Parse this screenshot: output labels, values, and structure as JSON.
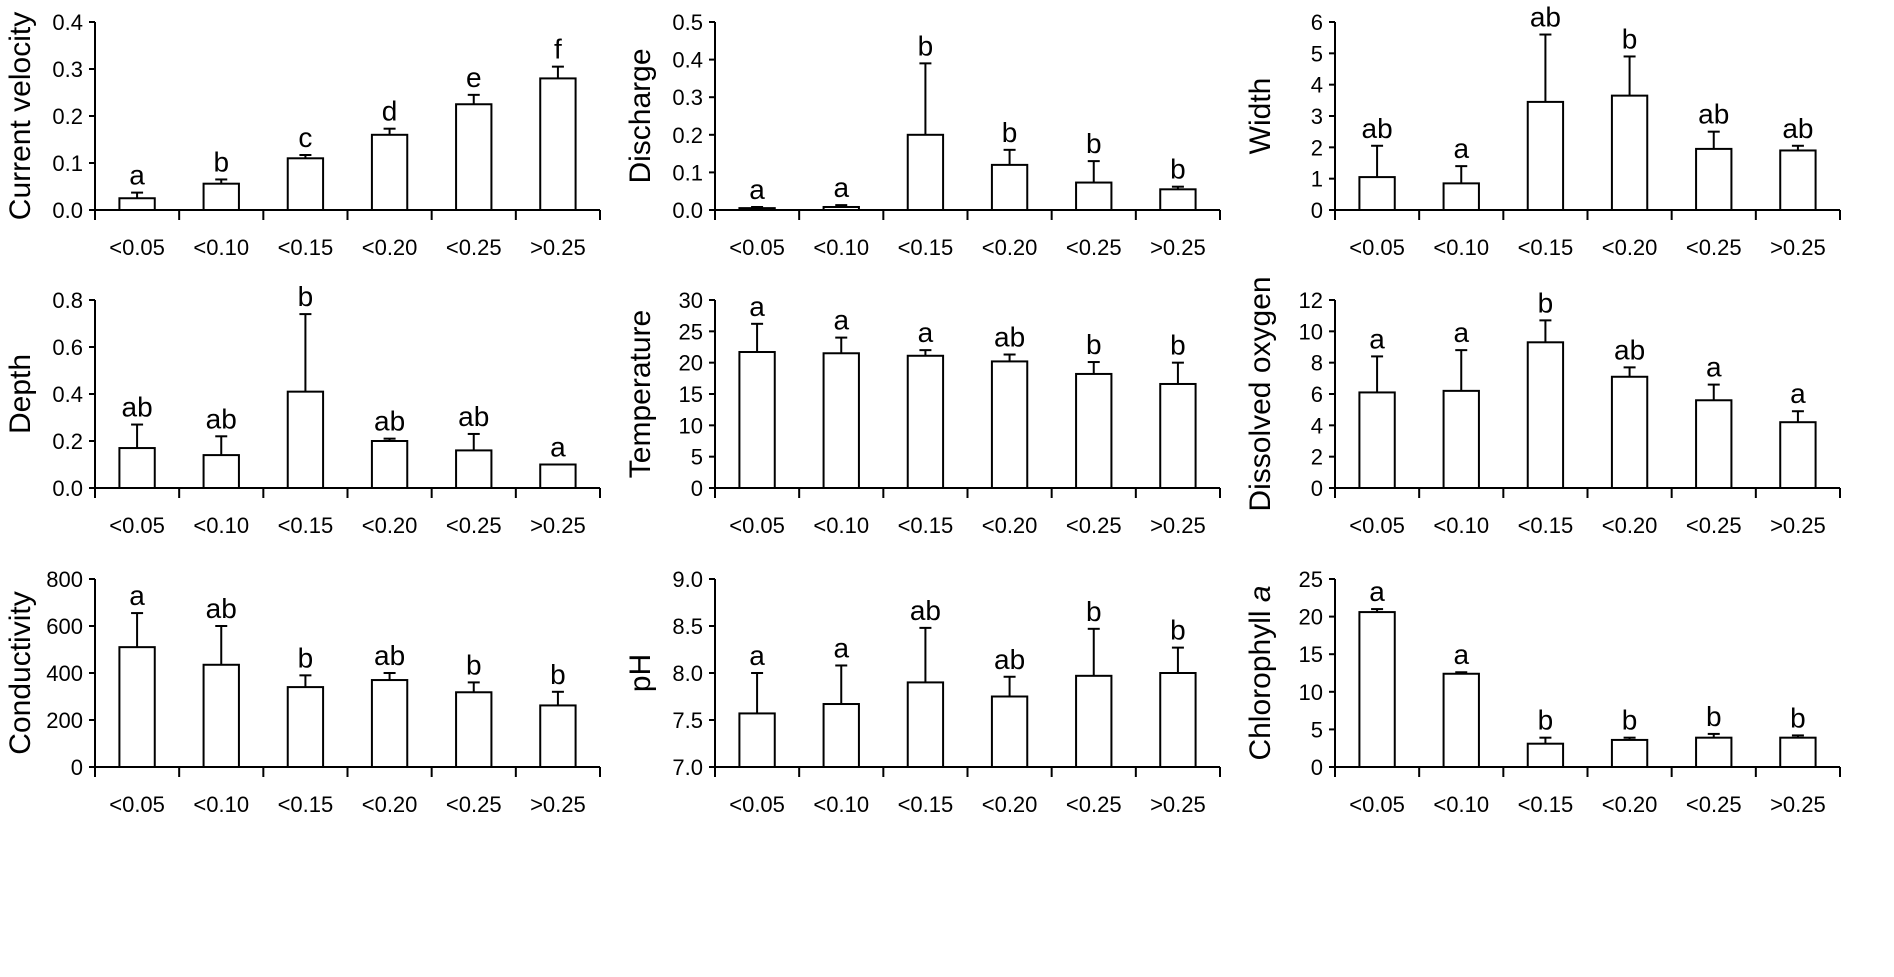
{
  "chart_data": [
    {
      "type": "bar",
      "ylabel": "Current velocity",
      "ylim": [
        0,
        0.4
      ],
      "ystep": 0.1,
      "ydec": 1,
      "categories": [
        "<0.05",
        "<0.10",
        "<0.15",
        "<0.20",
        "<0.25",
        ">0.25"
      ],
      "values": [
        0.025,
        0.056,
        0.11,
        0.16,
        0.225,
        0.28
      ],
      "error_top": [
        0.037,
        0.065,
        0.117,
        0.173,
        0.245,
        0.305
      ],
      "letters": [
        "a",
        "b",
        "c",
        "d",
        "e",
        "f"
      ]
    },
    {
      "type": "bar",
      "ylabel": "Discharge",
      "ylim": [
        0,
        0.5
      ],
      "ystep": 0.1,
      "ydec": 1,
      "categories": [
        "<0.05",
        "<0.10",
        "<0.15",
        "<0.20",
        "<0.25",
        ">0.25"
      ],
      "values": [
        0.005,
        0.008,
        0.2,
        0.12,
        0.073,
        0.055
      ],
      "error_top": [
        0.008,
        0.013,
        0.39,
        0.16,
        0.13,
        0.062
      ],
      "letters": [
        "a",
        "a",
        "b",
        "b",
        "b",
        "b"
      ]
    },
    {
      "type": "bar",
      "ylabel": "Width",
      "ylim": [
        0,
        6
      ],
      "ystep": 1,
      "ydec": 0,
      "categories": [
        "<0.05",
        "<0.10",
        "<0.15",
        "<0.20",
        "<0.25",
        ">0.25"
      ],
      "values": [
        1.05,
        0.85,
        3.45,
        3.65,
        1.95,
        1.9
      ],
      "error_top": [
        2.05,
        1.4,
        5.6,
        4.9,
        2.5,
        2.05
      ],
      "letters": [
        "ab",
        "a",
        "ab",
        "b",
        "ab",
        "ab"
      ]
    },
    {
      "type": "bar",
      "ylabel": "Depth",
      "ylim": [
        0,
        0.8
      ],
      "ystep": 0.2,
      "ydec": 1,
      "categories": [
        "<0.05",
        "<0.10",
        "<0.15",
        "<0.20",
        "<0.25",
        ">0.25"
      ],
      "values": [
        0.17,
        0.14,
        0.41,
        0.2,
        0.16,
        0.1
      ],
      "error_top": [
        0.27,
        0.22,
        0.74,
        0.21,
        0.23,
        0.1
      ],
      "letters": [
        "ab",
        "ab",
        "b",
        "ab",
        "ab",
        "a"
      ]
    },
    {
      "type": "bar",
      "ylabel": "Temperature",
      "ylim": [
        0,
        30
      ],
      "ystep": 5,
      "ydec": 0,
      "categories": [
        "<0.05",
        "<0.10",
        "<0.15",
        "<0.20",
        "<0.25",
        ">0.25"
      ],
      "values": [
        21.7,
        21.5,
        21.1,
        20.2,
        18.2,
        16.6
      ],
      "error_top": [
        26.2,
        24.0,
        22.0,
        21.3,
        20.1,
        20.0
      ],
      "letters": [
        "a",
        "a",
        "a",
        "ab",
        "b",
        "b"
      ]
    },
    {
      "type": "bar",
      "ylabel": "Dissolved oxygen",
      "ylim": [
        0,
        12
      ],
      "ystep": 2,
      "ydec": 0,
      "categories": [
        "<0.05",
        "<0.10",
        "<0.15",
        "<0.20",
        "<0.25",
        ">0.25"
      ],
      "values": [
        6.1,
        6.2,
        9.3,
        7.1,
        5.6,
        4.2
      ],
      "error_top": [
        8.4,
        8.8,
        10.7,
        7.7,
        6.6,
        4.9
      ],
      "letters": [
        "a",
        "a",
        "b",
        "ab",
        "a",
        "a"
      ]
    },
    {
      "type": "bar",
      "ylabel": "Conductivity",
      "ylim": [
        0,
        800
      ],
      "ystep": 200,
      "ydec": 0,
      "categories": [
        "<0.05",
        "<0.10",
        "<0.15",
        "<0.20",
        "<0.25",
        ">0.25"
      ],
      "values": [
        510,
        435,
        340,
        370,
        318,
        262
      ],
      "error_top": [
        655,
        600,
        390,
        400,
        360,
        320
      ],
      "letters": [
        "a",
        "ab",
        "b",
        "ab",
        "b",
        "b"
      ]
    },
    {
      "type": "bar",
      "ylabel": "pH",
      "ylim": [
        7.0,
        9.0
      ],
      "ystep": 0.5,
      "ydec": 1,
      "categories": [
        "<0.05",
        "<0.10",
        "<0.15",
        "<0.20",
        "<0.25",
        ">0.25"
      ],
      "values": [
        7.57,
        7.67,
        7.9,
        7.75,
        7.97,
        8.0
      ],
      "error_top": [
        8.0,
        8.08,
        8.48,
        7.96,
        8.47,
        8.27
      ],
      "letters": [
        "a",
        "a",
        "ab",
        "ab",
        "b",
        "b"
      ]
    },
    {
      "type": "bar",
      "ylabel": "Chlorophyll",
      "ylabel_italic": "a",
      "ylim": [
        0,
        25
      ],
      "ystep": 5,
      "ydec": 0,
      "categories": [
        "<0.05",
        "<0.10",
        "<0.15",
        "<0.20",
        "<0.25",
        ">0.25"
      ],
      "values": [
        20.6,
        12.4,
        3.1,
        3.6,
        3.9,
        3.9
      ],
      "error_top": [
        21.0,
        12.6,
        3.9,
        3.9,
        4.4,
        4.2
      ],
      "letters": [
        "a",
        "a",
        "b",
        "b",
        "b",
        "b"
      ]
    }
  ]
}
